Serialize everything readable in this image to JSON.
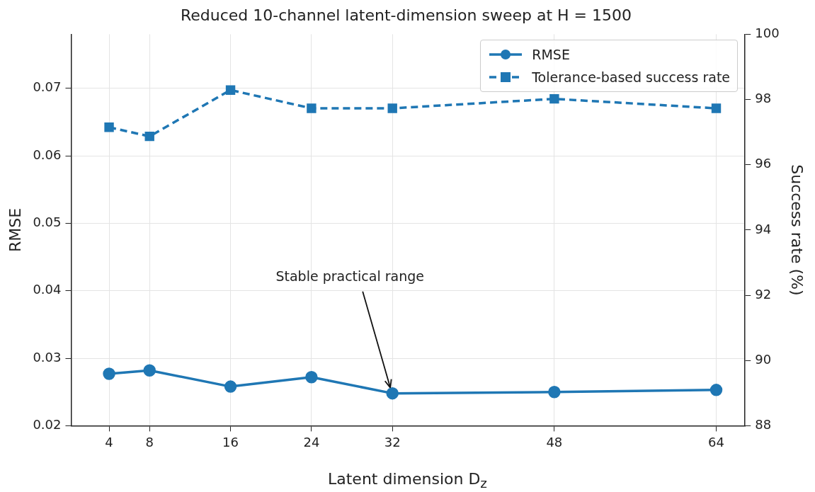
{
  "chart_data": {
    "type": "line",
    "title": "Reduced 10-channel latent-dimension sweep at H = 1500",
    "xlabel": "Latent dimension D$_{z}$",
    "ylabel": "RMSE",
    "y2label": "Success rate (%)",
    "x": [
      4,
      8,
      16,
      24,
      32,
      48,
      64
    ],
    "series": [
      {
        "name": "RMSE",
        "color": "#1f77b4",
        "marker": "circle",
        "line_style": "solid",
        "values": [
          0.0277,
          0.0282,
          0.0258,
          0.0272,
          0.0248,
          0.025,
          0.0253
        ]
      },
      {
        "name": "Tolerance-based success rate",
        "color": "#1f77b4",
        "marker": "square",
        "line_style": "dashed",
        "axis": "y2",
        "values": [
          97.15,
          96.87,
          98.29,
          97.73,
          97.73,
          98.02,
          97.73
        ]
      }
    ],
    "xlim": [
      0.25,
      66.85
    ],
    "xticks": [
      4,
      8,
      16,
      24,
      32,
      48,
      64
    ],
    "ylim": [
      0.02,
      0.078
    ],
    "yticks": [
      0.02,
      0.03,
      0.04,
      0.05,
      0.06,
      0.07
    ],
    "y2lim": [
      88,
      100
    ],
    "y2ticks": [
      88,
      90,
      92,
      94,
      96,
      98,
      100
    ],
    "annotations": [
      {
        "text": "Stable practical range",
        "x": 32,
        "y": 0.0248
      }
    ],
    "grid": true,
    "legend": "top right"
  }
}
